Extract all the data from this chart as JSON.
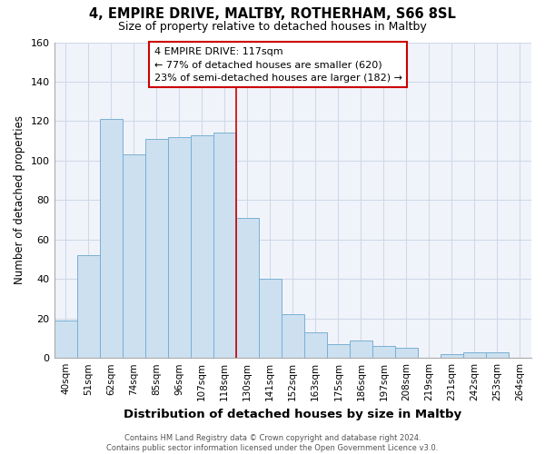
{
  "title": "4, EMPIRE DRIVE, MALTBY, ROTHERHAM, S66 8SL",
  "subtitle": "Size of property relative to detached houses in Maltby",
  "xlabel": "Distribution of detached houses by size in Maltby",
  "ylabel": "Number of detached properties",
  "bar_labels": [
    "40sqm",
    "51sqm",
    "62sqm",
    "74sqm",
    "85sqm",
    "96sqm",
    "107sqm",
    "118sqm",
    "130sqm",
    "141sqm",
    "152sqm",
    "163sqm",
    "175sqm",
    "186sqm",
    "197sqm",
    "208sqm",
    "219sqm",
    "231sqm",
    "242sqm",
    "253sqm",
    "264sqm"
  ],
  "bar_heights": [
    19,
    52,
    121,
    103,
    111,
    112,
    113,
    114,
    71,
    40,
    22,
    13,
    7,
    9,
    6,
    5,
    0,
    2,
    3,
    3,
    0
  ],
  "bar_color": "#cce0f0",
  "bar_edge_color": "#7ab0d4",
  "highlight_bar_index": 7,
  "highlight_line_color": "#cc0000",
  "ylim": [
    0,
    160
  ],
  "yticks": [
    0,
    20,
    40,
    60,
    80,
    100,
    120,
    140,
    160
  ],
  "annotation_title": "4 EMPIRE DRIVE: 117sqm",
  "annotation_line1": "← 77% of detached houses are smaller (620)",
  "annotation_line2": "23% of semi-detached houses are larger (182) →",
  "annotation_box_edge": "#cc0000",
  "footer1": "Contains HM Land Registry data © Crown copyright and database right 2024.",
  "footer2": "Contains public sector information licensed under the Open Government Licence v3.0.",
  "background_color": "#ffffff",
  "plot_bg_color": "#f0f4fa",
  "grid_color": "#d0d8e8"
}
